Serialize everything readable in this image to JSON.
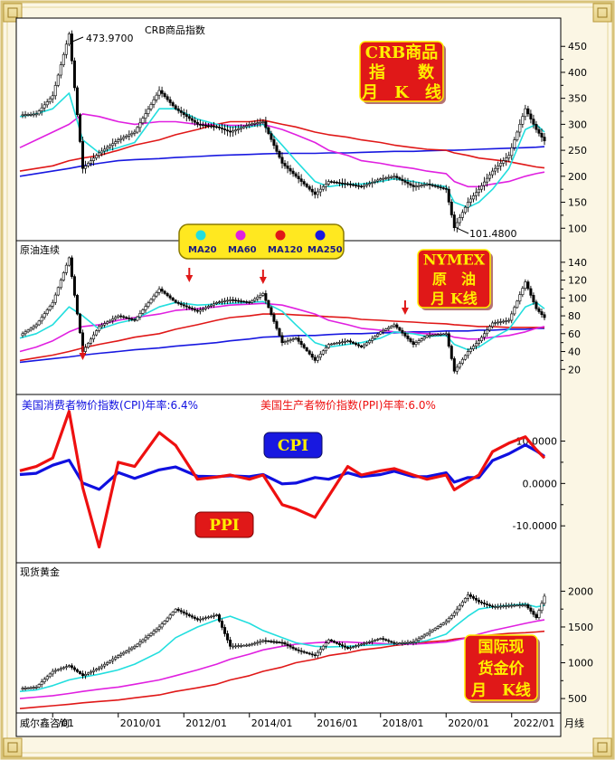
{
  "brand": "威尔鑫咨询",
  "timeframe_label": "月线",
  "x_tick_labels": [
    "/01",
    "2010/01",
    "2012/01",
    "2014/01",
    "2016/01",
    "2018/01",
    "2020/01",
    "2022/01"
  ],
  "colors": {
    "ma20": "#22dede",
    "ma60": "#e020e0",
    "ma120": "#e01818",
    "ma250": "#1818e0",
    "price": "#000000",
    "cpi": "#1010e0",
    "ppi": "#ee1010",
    "badge": "#e01818",
    "badge_text": "#ffee00"
  },
  "legend": {
    "items": [
      {
        "label": "MA20",
        "color": "#22dede"
      },
      {
        "label": "MA60",
        "color": "#e020e0"
      },
      {
        "label": "MA120",
        "color": "#e01818"
      },
      {
        "label": "MA250",
        "color": "#1818e0"
      }
    ]
  },
  "panels": {
    "crb": {
      "label": "CRB商品指数",
      "badge_lines": [
        "CRB商品",
        "指　　数",
        "月　K　线"
      ],
      "high_label": "473.9700",
      "low_label": "101.4800"
    },
    "oil": {
      "label": "原油连续",
      "badge_lines": [
        "NYMEX",
        "原　油",
        "月 K线"
      ]
    },
    "macro": {
      "cpi_title": "美国消费者物价指数(CPI)年率:6.4%",
      "ppi_title": "美国生产者物价指数(PPI)年率:6.0%",
      "cpi_tag": "CPI",
      "ppi_tag": "PPI"
    },
    "gold": {
      "label": "现货黄金",
      "badge_lines": [
        "国际现",
        "货金价",
        "月　K线"
      ]
    }
  },
  "chart_data": [
    {
      "type": "line",
      "name_ref": "crb",
      "ylim": [
        90,
        480
      ],
      "yticks": [
        100,
        150,
        200,
        250,
        300,
        350,
        400,
        450
      ],
      "x": [
        "2007-01",
        "2007-07",
        "2008-01",
        "2008-07",
        "2008-12",
        "2009-06",
        "2010-01",
        "2010-07",
        "2011-04",
        "2011-10",
        "2012-06",
        "2013-01",
        "2013-06",
        "2014-01",
        "2014-06",
        "2015-01",
        "2015-06",
        "2016-01",
        "2016-06",
        "2017-01",
        "2017-06",
        "2018-01",
        "2018-06",
        "2019-01",
        "2019-06",
        "2020-01",
        "2020-04",
        "2020-09",
        "2021-01",
        "2021-06",
        "2021-12",
        "2022-06",
        "2022-10",
        "2023-01"
      ],
      "series": [
        {
          "key": "price",
          "values": [
            318,
            320,
            355,
            474,
            215,
            245,
            270,
            285,
            365,
            330,
            300,
            295,
            285,
            300,
            305,
            225,
            200,
            165,
            190,
            185,
            180,
            195,
            200,
            180,
            185,
            175,
            101,
            150,
            175,
            210,
            240,
            330,
            290,
            268
          ]
        },
        {
          "key": "ma20",
          "values": [
            315,
            320,
            330,
            360,
            270,
            245,
            255,
            265,
            330,
            330,
            310,
            300,
            295,
            295,
            300,
            260,
            230,
            190,
            180,
            185,
            185,
            190,
            195,
            190,
            185,
            180,
            150,
            140,
            150,
            175,
            215,
            290,
            300,
            285
          ]
        },
        {
          "key": "ma60",
          "values": [
            255,
            270,
            285,
            300,
            320,
            315,
            305,
            300,
            305,
            305,
            300,
            300,
            298,
            298,
            300,
            290,
            280,
            265,
            250,
            240,
            230,
            225,
            220,
            215,
            210,
            205,
            190,
            180,
            180,
            185,
            190,
            200,
            205,
            208
          ]
        },
        {
          "key": "ma120",
          "values": [
            210,
            215,
            220,
            230,
            235,
            240,
            250,
            260,
            270,
            280,
            290,
            300,
            305,
            305,
            308,
            300,
            295,
            285,
            280,
            275,
            270,
            265,
            260,
            255,
            252,
            250,
            245,
            240,
            235,
            232,
            228,
            222,
            218,
            216
          ]
        },
        {
          "key": "ma250",
          "values": [
            200,
            205,
            210,
            215,
            220,
            225,
            230,
            232,
            234,
            236,
            238,
            240,
            241,
            242,
            243,
            244,
            244,
            244,
            245,
            245,
            246,
            247,
            248,
            248,
            249,
            250,
            250,
            251,
            252,
            253,
            254,
            255,
            256,
            257
          ]
        }
      ]
    },
    {
      "type": "line",
      "name_ref": "oil",
      "ylim": [
        0,
        150
      ],
      "yticks": [
        20,
        40,
        60,
        80,
        100,
        120,
        140
      ],
      "x": [
        "2007-01",
        "2007-07",
        "2008-01",
        "2008-07",
        "2008-12",
        "2009-06",
        "2010-01",
        "2010-07",
        "2011-04",
        "2011-10",
        "2012-06",
        "2013-01",
        "2013-06",
        "2014-01",
        "2014-06",
        "2015-01",
        "2015-06",
        "2016-01",
        "2016-06",
        "2017-01",
        "2017-06",
        "2018-01",
        "2018-06",
        "2019-01",
        "2019-06",
        "2020-01",
        "2020-04",
        "2020-09",
        "2021-01",
        "2021-06",
        "2021-12",
        "2022-06",
        "2022-10",
        "2023-01"
      ],
      "series": [
        {
          "key": "price",
          "values": [
            58,
            70,
            95,
            145,
            40,
            68,
            80,
            75,
            110,
            95,
            85,
            95,
            98,
            95,
            105,
            50,
            55,
            30,
            48,
            52,
            45,
            62,
            70,
            48,
            58,
            60,
            18,
            40,
            52,
            72,
            75,
            118,
            88,
            78
          ]
        },
        {
          "key": "ma20",
          "values": [
            55,
            60,
            70,
            90,
            80,
            65,
            72,
            76,
            90,
            95,
            92,
            93,
            94,
            95,
            96,
            85,
            70,
            50,
            45,
            48,
            50,
            55,
            62,
            60,
            57,
            58,
            48,
            42,
            45,
            55,
            65,
            90,
            95,
            88
          ]
        },
        {
          "key": "ma60",
          "values": [
            40,
            45,
            52,
            62,
            68,
            70,
            75,
            78,
            82,
            86,
            88,
            90,
            92,
            93,
            94,
            92,
            88,
            82,
            75,
            70,
            66,
            64,
            62,
            61,
            60,
            59,
            56,
            54,
            54,
            56,
            58,
            62,
            66,
            68
          ]
        },
        {
          "key": "ma120",
          "values": [
            30,
            33,
            36,
            40,
            44,
            48,
            52,
            56,
            60,
            65,
            70,
            75,
            78,
            80,
            82,
            82,
            81,
            80,
            79,
            78,
            76,
            75,
            74,
            73,
            72,
            71,
            70,
            69,
            68,
            68,
            67,
            67,
            67,
            67
          ]
        },
        {
          "key": "ma250",
          "values": [
            28,
            30,
            32,
            34,
            36,
            38,
            40,
            42,
            44,
            46,
            48,
            50,
            52,
            54,
            56,
            57,
            58,
            58,
            59,
            60,
            60,
            61,
            61,
            62,
            62,
            63,
            63,
            63,
            64,
            64,
            65,
            65,
            66,
            66
          ]
        }
      ]
    },
    {
      "type": "line",
      "name_ref": "macro",
      "ylim": [
        -17,
        18
      ],
      "yticks": [
        -10,
        0,
        10
      ],
      "ytick_labels": [
        "-10.0000",
        "0.0000",
        "10.0000"
      ],
      "x": [
        "2007-01",
        "2007-07",
        "2008-01",
        "2008-07",
        "2008-12",
        "2009-06",
        "2010-01",
        "2010-07",
        "2011-04",
        "2011-10",
        "2012-06",
        "2013-01",
        "2013-06",
        "2014-01",
        "2014-06",
        "2015-01",
        "2015-06",
        "2016-01",
        "2016-06",
        "2017-01",
        "2017-06",
        "2018-01",
        "2018-06",
        "2019-01",
        "2019-06",
        "2020-01",
        "2020-04",
        "2020-09",
        "2021-01",
        "2021-06",
        "2021-12",
        "2022-06",
        "2022-10",
        "2023-01"
      ],
      "series": [
        {
          "key": "cpi",
          "values": [
            2.1,
            2.4,
            4.3,
            5.5,
            0.1,
            -1.4,
            2.6,
            1.2,
            3.2,
            3.9,
            1.7,
            1.6,
            1.8,
            1.6,
            2.1,
            -0.1,
            0.1,
            1.4,
            1.0,
            2.5,
            1.6,
            2.1,
            2.9,
            1.6,
            1.6,
            2.5,
            0.3,
            1.4,
            1.4,
            5.4,
            7.0,
            9.1,
            7.7,
            6.4
          ]
        },
        {
          "key": "ppi",
          "values": [
            3.0,
            4.0,
            6.0,
            17.0,
            -1.0,
            -15.0,
            5.0,
            4.0,
            12.0,
            9.0,
            1.0,
            1.5,
            2.0,
            1.0,
            2.0,
            -5.0,
            -6.0,
            -8.0,
            -3.0,
            4.0,
            2.0,
            3.0,
            3.5,
            2.0,
            1.0,
            2.0,
            -1.5,
            0.5,
            2.0,
            7.5,
            9.5,
            11.0,
            8.0,
            6.0
          ]
        }
      ]
    },
    {
      "type": "line",
      "name_ref": "gold",
      "ylim": [
        400,
        2220
      ],
      "yticks": [
        500,
        1000,
        1500,
        2000
      ],
      "x": [
        "2007-01",
        "2007-07",
        "2008-01",
        "2008-07",
        "2008-12",
        "2009-06",
        "2010-01",
        "2010-07",
        "2011-04",
        "2011-10",
        "2012-06",
        "2013-01",
        "2013-06",
        "2014-01",
        "2014-06",
        "2015-01",
        "2015-06",
        "2016-01",
        "2016-06",
        "2017-01",
        "2017-06",
        "2018-01",
        "2018-06",
        "2019-01",
        "2019-06",
        "2020-01",
        "2020-04",
        "2020-09",
        "2021-01",
        "2021-06",
        "2021-12",
        "2022-06",
        "2022-10",
        "2023-01"
      ],
      "series": [
        {
          "key": "price",
          "values": [
            640,
            660,
            880,
            960,
            820,
            930,
            1100,
            1230,
            1500,
            1750,
            1600,
            1670,
            1230,
            1250,
            1310,
            1280,
            1180,
            1100,
            1320,
            1200,
            1260,
            1340,
            1270,
            1290,
            1410,
            1580,
            1700,
            1950,
            1850,
            1780,
            1800,
            1810,
            1630,
            1930
          ]
        },
        {
          "key": "ma20",
          "values": [
            600,
            620,
            680,
            760,
            800,
            840,
            900,
            980,
            1150,
            1350,
            1500,
            1600,
            1650,
            1550,
            1450,
            1350,
            1280,
            1230,
            1220,
            1230,
            1240,
            1250,
            1260,
            1280,
            1310,
            1400,
            1500,
            1650,
            1750,
            1780,
            1800,
            1820,
            1780,
            1800
          ]
        },
        {
          "key": "ma60",
          "values": [
            500,
            520,
            540,
            570,
            600,
            630,
            660,
            700,
            760,
            820,
            900,
            980,
            1050,
            1120,
            1180,
            1230,
            1260,
            1280,
            1290,
            1290,
            1280,
            1270,
            1260,
            1260,
            1270,
            1290,
            1310,
            1350,
            1400,
            1450,
            1500,
            1550,
            1580,
            1600
          ]
        },
        {
          "key": "ma120",
          "values": [
            360,
            380,
            400,
            420,
            440,
            460,
            480,
            510,
            550,
            600,
            650,
            700,
            760,
            820,
            880,
            940,
            1000,
            1050,
            1100,
            1140,
            1180,
            1210,
            1240,
            1270,
            1290,
            1310,
            1330,
            1350,
            1370,
            1390,
            1410,
            1420,
            1430,
            1440
          ]
        }
      ]
    }
  ]
}
